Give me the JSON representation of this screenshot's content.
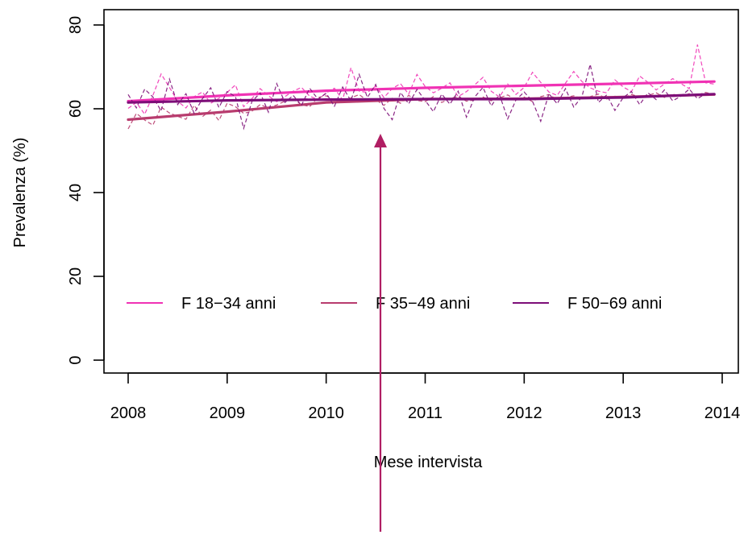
{
  "chart_data": {
    "type": "line",
    "title": "",
    "xlabel": "Mese intervista",
    "ylabel": "Prevalenza (%)",
    "xlim": [
      2008,
      2014
    ],
    "ylim": [
      0,
      80
    ],
    "x_ticks": [
      "2008",
      "2009",
      "2010",
      "2011",
      "2012",
      "2013",
      "2014"
    ],
    "y_ticks": [
      "0",
      "20",
      "40",
      "60",
      "80"
    ],
    "grid": false,
    "legend_position": "inside-bottom",
    "series": [
      {
        "name": "F 18−34 anni",
        "color": "#f032b4",
        "trend": [
          [
            2008,
            61.8
          ],
          [
            2009,
            63.2
          ],
          [
            2010,
            64.3
          ],
          [
            2011,
            65.0
          ],
          [
            2012,
            65.5
          ],
          [
            2013,
            66.0
          ],
          [
            2013.92,
            66.5
          ]
        ],
        "monthly": [
          60.1,
          61.5,
          58.7,
          63.2,
          68.3,
          65.1,
          61.8,
          60.2,
          62.9,
          64.0,
          61.3,
          62.5,
          63.9,
          65.7,
          60.5,
          62.4,
          64.8,
          63.1,
          61.7,
          62.9,
          64.2,
          65.1,
          63.0,
          62.2,
          63.8,
          64.9,
          62.1,
          69.8,
          64.2,
          63.9,
          65.4,
          62.7,
          64.8,
          66.0,
          63.5,
          68.2,
          65.3,
          63.8,
          64.9,
          66.2,
          62.9,
          64.1,
          65.7,
          67.5,
          64.2,
          62.8,
          65.9,
          63.4,
          65.1,
          68.7,
          66.3,
          64.0,
          63.2,
          66.1,
          68.9,
          66.5,
          65.0,
          64.2,
          63.8,
          66.9,
          65.2,
          64.1,
          67.8,
          66.3,
          64.5,
          65.9,
          67.2,
          66.0,
          64.8,
          75.3,
          66.2,
          65.9
        ]
      },
      {
        "name": "F 35−49 anni",
        "color": "#b83c6e",
        "trend": [
          [
            2008,
            57.4
          ],
          [
            2009,
            59.3
          ],
          [
            2010,
            61.5
          ],
          [
            2011,
            62.3
          ],
          [
            2012,
            62.4
          ],
          [
            2013,
            62.8
          ],
          [
            2013.92,
            63.4
          ]
        ],
        "monthly": [
          55.2,
          58.9,
          57.3,
          56.1,
          60.4,
          59.0,
          58.2,
          57.5,
          60.8,
          58.1,
          59.7,
          57.2,
          61.3,
          60.5,
          58.9,
          59.4,
          61.0,
          60.2,
          60.9,
          61.8,
          62.3,
          61.0,
          60.5,
          62.7,
          63.1,
          62.0,
          61.4,
          62.6,
          63.4,
          61.9,
          62.2,
          60.8,
          62.5,
          61.3,
          63.2,
          62.0,
          61.7,
          62.9,
          61.5,
          62.4,
          63.0,
          61.8,
          62.1,
          62.8,
          61.9,
          62.6,
          63.3,
          62.0,
          62.8,
          61.7,
          62.9,
          63.4,
          62.2,
          62.7,
          63.1,
          62.4,
          62.9,
          63.5,
          62.3,
          63.0,
          62.6,
          63.4,
          62.9,
          63.2,
          63.8,
          62.7,
          63.5,
          63.0,
          63.6,
          63.3,
          63.9,
          63.4
        ]
      },
      {
        "name": "F 50−69 anni",
        "color": "#7d0e78",
        "trend": [
          [
            2008,
            61.5
          ],
          [
            2009,
            62.0
          ],
          [
            2010,
            62.2
          ],
          [
            2011,
            62.3
          ],
          [
            2012,
            62.3
          ],
          [
            2013,
            62.7
          ],
          [
            2013.92,
            63.5
          ]
        ],
        "monthly": [
          63.4,
          60.2,
          64.7,
          62.8,
          59.5,
          67.1,
          61.0,
          63.6,
          58.9,
          62.4,
          65.0,
          60.3,
          64.1,
          62.9,
          55.3,
          61.7,
          63.8,
          59.2,
          66.0,
          61.5,
          63.2,
          60.8,
          64.9,
          62.3,
          63.7,
          60.6,
          65.2,
          61.9,
          68.2,
          62.7,
          65.8,
          60.1,
          57.4,
          63.9,
          61.2,
          64.6,
          62.0,
          59.3,
          63.5,
          61.1,
          64.2,
          58.0,
          62.8,
          65.1,
          60.7,
          63.4,
          57.6,
          62.1,
          64.0,
          61.8,
          57.0,
          63.6,
          61.2,
          64.8,
          60.4,
          62.9,
          70.6,
          61.5,
          63.3,
          59.6,
          62.7,
          64.1,
          61.0,
          63.8,
          62.2,
          64.5,
          61.9,
          63.0,
          64.7,
          62.4,
          63.6,
          63.3
        ]
      }
    ]
  }
}
